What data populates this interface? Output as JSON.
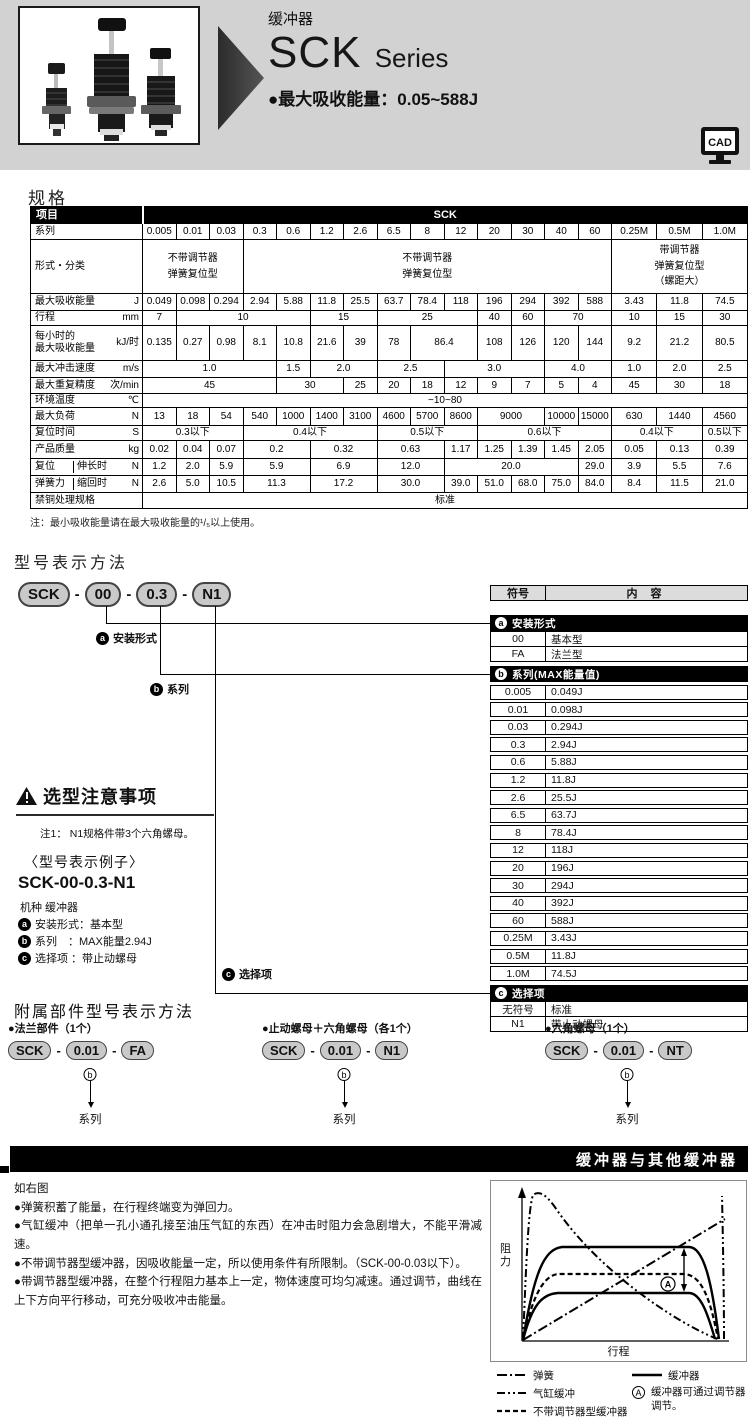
{
  "colors": {
    "header_band": "#d2d2d2",
    "pill_fill": "#c9c9c9",
    "bar_black": "#000000",
    "table_header_bg": "#dcdcdc"
  },
  "header": {
    "category": "缓冲器",
    "title": "SCK",
    "title_suffix": "Series",
    "subtitle": "●最大吸收能量：0.05~588J",
    "cad_label": "CAD"
  },
  "spec": {
    "heading": "规格",
    "note": "注：最小吸收能量请在最大吸收能量的¹/₅以上使用。",
    "table": {
      "item_header": "项目",
      "group_header": "SCK",
      "rows": [
        {
          "label": "系列",
          "unit": "",
          "cells": [
            {
              "t": "0.005"
            },
            {
              "t": "0.01"
            },
            {
              "t": "0.03"
            },
            {
              "t": "0.3"
            },
            {
              "t": "0.6"
            },
            {
              "t": "1.2"
            },
            {
              "t": "2.6"
            },
            {
              "t": "6.5"
            },
            {
              "t": "8"
            },
            {
              "t": "12"
            },
            {
              "t": "20"
            },
            {
              "t": "30"
            },
            {
              "t": "40"
            },
            {
              "t": "60"
            },
            {
              "t": "0.25M"
            },
            {
              "t": "0.5M"
            },
            {
              "t": "1.0M"
            }
          ]
        },
        {
          "label": "形式・分类",
          "unit": "",
          "cells": [
            {
              "t": "不带调节器\n弹簧复位型",
              "c": 3
            },
            {
              "t": "不带调节器\n弹簧复位型",
              "c": 11
            },
            {
              "t": "带调节器\n弹簧复位型\n（螺距大）",
              "c": 3
            }
          ]
        },
        {
          "label": "最大吸收能量",
          "unit": "J",
          "cells": [
            {
              "t": "0.049"
            },
            {
              "t": "0.098"
            },
            {
              "t": "0.294"
            },
            {
              "t": "2.94"
            },
            {
              "t": "5.88"
            },
            {
              "t": "11.8"
            },
            {
              "t": "25.5"
            },
            {
              "t": "63.7"
            },
            {
              "t": "78.4"
            },
            {
              "t": "118"
            },
            {
              "t": "196"
            },
            {
              "t": "294"
            },
            {
              "t": "392"
            },
            {
              "t": "588"
            },
            {
              "t": "3.43"
            },
            {
              "t": "11.8"
            },
            {
              "t": "74.5"
            }
          ]
        },
        {
          "label": "行程",
          "unit": "mm",
          "cells": [
            {
              "t": "7"
            },
            {
              "t": "10",
              "c": 4
            },
            {
              "t": "15",
              "c": 2
            },
            {
              "t": "25",
              "c": 3
            },
            {
              "t": "40"
            },
            {
              "t": "60"
            },
            {
              "t": "70",
              "c": 2
            },
            {
              "t": "10"
            },
            {
              "t": "15"
            },
            {
              "t": "30"
            }
          ]
        },
        {
          "label": "每小时的\n最大吸收能量",
          "unit": "kJ/时",
          "cells": [
            {
              "t": "0.135"
            },
            {
              "t": "0.27"
            },
            {
              "t": "0.98"
            },
            {
              "t": "8.1"
            },
            {
              "t": "10.8"
            },
            {
              "t": "21.6"
            },
            {
              "t": "39"
            },
            {
              "t": "78"
            },
            {
              "t": "86.4",
              "c": 2
            },
            {
              "t": "108"
            },
            {
              "t": "126"
            },
            {
              "t": "120"
            },
            {
              "t": "144"
            },
            {
              "t": "9.2"
            },
            {
              "t": "21.2"
            },
            {
              "t": "80.5"
            }
          ]
        },
        {
          "label": "最大冲击速度",
          "unit": "m/s",
          "cells": [
            {
              "t": "1.0",
              "c": 4
            },
            {
              "t": "1.5"
            },
            {
              "t": "2.0",
              "c": 2
            },
            {
              "t": "2.5",
              "c": 2
            },
            {
              "t": "3.0",
              "c": 3
            },
            {
              "t": "4.0",
              "c": 2
            },
            {
              "t": "1.0"
            },
            {
              "t": "2.0"
            },
            {
              "t": "2.5"
            }
          ]
        },
        {
          "label": "最大重复精度",
          "unit": "次/min",
          "cells": [
            {
              "t": "45",
              "c": 4
            },
            {
              "t": "30",
              "c": 2
            },
            {
              "t": "25"
            },
            {
              "t": "20"
            },
            {
              "t": "18"
            },
            {
              "t": "12"
            },
            {
              "t": "9"
            },
            {
              "t": "7"
            },
            {
              "t": "5"
            },
            {
              "t": "4"
            },
            {
              "t": "45"
            },
            {
              "t": "30"
            },
            {
              "t": "18"
            }
          ]
        },
        {
          "label": "环境温度",
          "unit": "℃",
          "cells": [
            {
              "t": "−10~80",
              "c": 17
            }
          ]
        },
        {
          "label": "最大负荷",
          "unit": "N",
          "cells": [
            {
              "t": "13"
            },
            {
              "t": "18"
            },
            {
              "t": "54"
            },
            {
              "t": "540"
            },
            {
              "t": "1000"
            },
            {
              "t": "1400"
            },
            {
              "t": "3100"
            },
            {
              "t": "4600"
            },
            {
              "t": "5700"
            },
            {
              "t": "8600"
            },
            {
              "t": "9000",
              "c": 2
            },
            {
              "t": "10000"
            },
            {
              "t": "15000"
            },
            {
              "t": "630"
            },
            {
              "t": "1440"
            },
            {
              "t": "4560"
            }
          ]
        },
        {
          "label": "复位时间",
          "unit": "S",
          "cells": [
            {
              "t": "0.3以下",
              "c": 3
            },
            {
              "t": "0.4以下",
              "c": 4
            },
            {
              "t": "0.5以下",
              "c": 3
            },
            {
              "t": "0.6以下",
              "c": 4
            },
            {
              "t": "0.4以下",
              "c": 2
            },
            {
              "t": "0.5以下"
            }
          ]
        },
        {
          "label": "产品质量",
          "unit": "kg",
          "cells": [
            {
              "t": "0.02"
            },
            {
              "t": "0.04"
            },
            {
              "t": "0.07"
            },
            {
              "t": "0.2",
              "c": 2
            },
            {
              "t": "0.32",
              "c": 2
            },
            {
              "t": "0.63",
              "c": 2
            },
            {
              "t": "1.17"
            },
            {
              "t": "1.25"
            },
            {
              "t": "1.39"
            },
            {
              "t": "1.45"
            },
            {
              "t": "2.05"
            },
            {
              "t": "0.05"
            },
            {
              "t": "0.13"
            },
            {
              "t": "0.39"
            }
          ]
        },
        {
          "label": "复位",
          "label2": "伸长时",
          "unit": "N",
          "cells": [
            {
              "t": "1.2"
            },
            {
              "t": "2.0"
            },
            {
              "t": "5.9"
            },
            {
              "t": "5.9",
              "c": 2
            },
            {
              "t": "6.9",
              "c": 2
            },
            {
              "t": "12.0",
              "c": 2
            },
            {
              "t": "20.0",
              "c": 4
            },
            {
              "t": "29.0"
            },
            {
              "t": "3.9"
            },
            {
              "t": "5.5"
            },
            {
              "t": "7.6"
            }
          ]
        },
        {
          "label": "弹簧力",
          "label2": "缩回时",
          "unit": "N",
          "cells": [
            {
              "t": "2.6"
            },
            {
              "t": "5.0"
            },
            {
              "t": "10.5"
            },
            {
              "t": "11.3",
              "c": 2
            },
            {
              "t": "17.2",
              "c": 2
            },
            {
              "t": "30.0",
              "c": 2
            },
            {
              "t": "39.0"
            },
            {
              "t": "51.0"
            },
            {
              "t": "68.0"
            },
            {
              "t": "75.0"
            },
            {
              "t": "84.0"
            },
            {
              "t": "8.4"
            },
            {
              "t": "11.5"
            },
            {
              "t": "21.0"
            }
          ]
        },
        {
          "label": "禁铜处理规格",
          "unit": "",
          "cells": [
            {
              "t": "标准",
              "c": 17
            }
          ]
        }
      ]
    }
  },
  "model": {
    "heading": "型号表示方法",
    "pills": [
      "SCK",
      "00",
      "0.3",
      "N1"
    ],
    "pill_separator": "-",
    "callouts": [
      {
        "badge": "a",
        "label": "安装形式"
      },
      {
        "badge": "b",
        "label": "系列"
      },
      {
        "badge": "c",
        "label": "选择项"
      }
    ],
    "table": {
      "col_symbol": "符号",
      "col_content": "内 容",
      "sections": [
        {
          "badge": "a",
          "title": "安装形式",
          "rows": [
            [
              "00",
              "基本型"
            ],
            [
              "FA",
              "法兰型"
            ]
          ]
        },
        {
          "badge": "b",
          "title": "系列(MAX能量值)",
          "rows": [
            [
              "0.005",
              "0.049J"
            ],
            [
              "0.01",
              "0.098J"
            ],
            [
              "0.03",
              "0.294J"
            ],
            [
              "0.3",
              "2.94J"
            ],
            [
              "0.6",
              "5.88J"
            ],
            [
              "1.2",
              "11.8J"
            ],
            [
              "2.6",
              "25.5J"
            ],
            [
              "6.5",
              "63.7J"
            ],
            [
              "8",
              "78.4J"
            ],
            [
              "12",
              "118J"
            ],
            [
              "20",
              "196J"
            ],
            [
              "30",
              "294J"
            ],
            [
              "40",
              "392J"
            ],
            [
              "60",
              "588J"
            ],
            [
              "0.25M",
              "3.43J"
            ],
            [
              "0.5M",
              "11.8J"
            ],
            [
              "1.0M",
              "74.5J"
            ]
          ]
        },
        {
          "badge": "c",
          "title": "选择项",
          "rows": [
            [
              "无符号",
              "标准"
            ],
            [
              "N1",
              "带止动螺母"
            ]
          ]
        }
      ]
    }
  },
  "notes": {
    "heading": "选型注意事项",
    "note1": "注1： N1规格件带3个六角螺母。",
    "example_heading": "〈型号表示例子〉",
    "example_model": "SCK-00-0.3-N1",
    "machine_line": "机种 缓冲器",
    "example_lines": [
      {
        "badge": "a",
        "text": "安装形式：基本型"
      },
      {
        "badge": "b",
        "text": "系列　：MAX能量2.94J"
      },
      {
        "badge": "c",
        "text": "选择项 ：带止动螺母"
      }
    ]
  },
  "accessory": {
    "heading": "附属部件型号表示方法",
    "pill_separator": "-",
    "groups": [
      {
        "title": "●法兰部件（1个）",
        "pills": [
          "SCK",
          "0.01",
          "FA"
        ],
        "badge": "b",
        "label": "系列"
      },
      {
        "title": "●止动螺母＋六角螺母（各1个）",
        "pills": [
          "SCK",
          "0.01",
          "N1"
        ],
        "badge": "b",
        "label": "系列"
      },
      {
        "title": "●六角螺母（1个）",
        "pills": [
          "SCK",
          "0.01",
          "NT"
        ],
        "badge": "b",
        "label": "系列"
      }
    ]
  },
  "comparison": {
    "bar_title": "缓冲器与其他缓冲器",
    "intro": "如右图",
    "bullets": [
      "●弹簧积蓄了能量，在行程终端变为弹回力。",
      "●气缸缓冲（把单一孔小通孔接至油压气缸的东西）在冲击时阻力会急剧增大，不能平滑减速。",
      "●不带调节器型缓冲器，因吸收能量一定，所以使用条件有所限制。（SCK-00-0.03以下）。",
      "●带调节器型缓冲器，在整个行程阻力基本上一定，物体速度可均匀减速。通过调节，曲线在上下方向平行移动，可充分吸收冲击能量。"
    ],
    "chart": {
      "type": "line-diagram",
      "ylabel": "阻力",
      "xlabel": "行程",
      "annotation": "A",
      "legend_left": [
        {
          "style": "dashdot",
          "label": "弹簧"
        },
        {
          "style": "dashdotdot",
          "label": "气缸缓冲"
        },
        {
          "style": "dashed",
          "label": "不带调节器型缓冲器"
        }
      ],
      "legend_right": [
        {
          "style": "solid",
          "label": "缓冲器"
        },
        {
          "style": "badge",
          "label": "缓冲器可通过调节器调节。"
        }
      ]
    }
  }
}
